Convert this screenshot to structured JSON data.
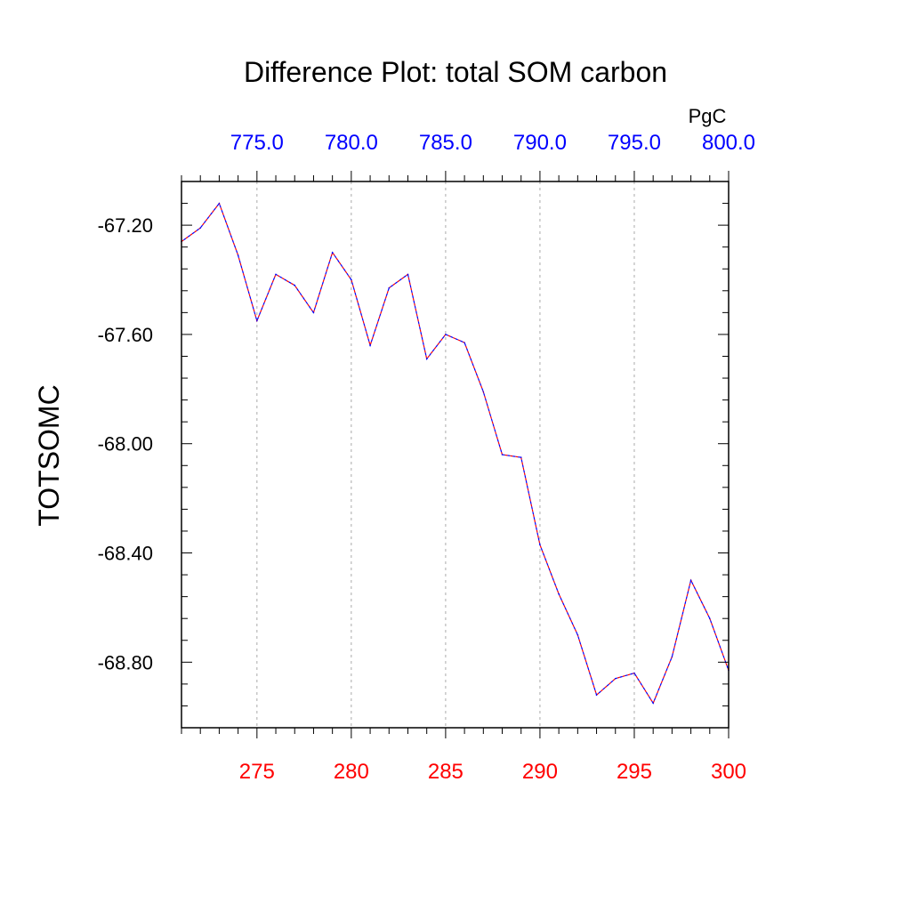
{
  "chart_data": {
    "type": "line",
    "title": "Difference Plot: total SOM carbon",
    "ylabel": "TOTSOMC",
    "top_axis_unit": "PgC",
    "xlim": [
      271,
      300
    ],
    "ylim": [
      -69.04,
      -67.04
    ],
    "x_ticks": [
      "275",
      "280",
      "285",
      "290",
      "295",
      "300"
    ],
    "top_ticks": [
      "775.0",
      "780.0",
      "785.0",
      "790.0",
      "795.0",
      "800.0"
    ],
    "y_ticks": [
      "-67.20",
      "-67.60",
      "-68.00",
      "-68.40",
      "-68.80"
    ],
    "grid": "vertical dashed at major x ticks",
    "series": [
      {
        "color_primary": "#ff0000",
        "color_secondary": "#0000ff",
        "x": [
          271,
          272,
          273,
          274,
          275,
          276,
          277,
          278,
          279,
          280,
          281,
          282,
          283,
          284,
          285,
          286,
          287,
          288,
          289,
          290,
          291,
          292,
          293,
          294,
          295,
          296,
          297,
          298,
          299,
          300
        ],
        "y": [
          -67.26,
          -67.21,
          -67.12,
          -67.31,
          -67.55,
          -67.38,
          -67.42,
          -67.52,
          -67.3,
          -67.4,
          -67.64,
          -67.43,
          -67.38,
          -67.69,
          -67.6,
          -67.63,
          -67.81,
          -68.04,
          -68.05,
          -68.37,
          -68.55,
          -68.7,
          -68.92,
          -68.86,
          -68.84,
          -68.95,
          -68.78,
          -68.5,
          -68.64,
          -68.83
        ]
      }
    ]
  }
}
